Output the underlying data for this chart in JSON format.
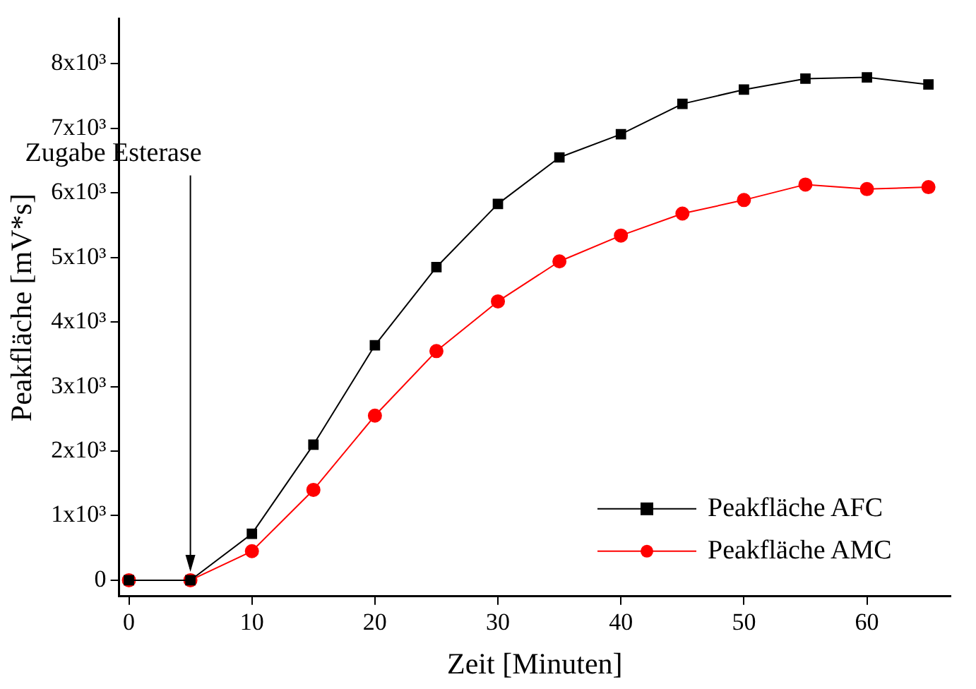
{
  "chart_data": {
    "type": "line",
    "xlabel": "Zeit [Minuten]",
    "ylabel": "Peakfläche [mV*s]",
    "x": [
      0,
      5,
      10,
      15,
      20,
      25,
      30,
      35,
      40,
      45,
      50,
      55,
      60,
      65
    ],
    "series": [
      {
        "name": "Peakfläche AFC",
        "color": "#000000",
        "marker": "square",
        "values": [
          0,
          0,
          720,
          2100,
          3640,
          4850,
          5830,
          6550,
          6910,
          7380,
          7600,
          7770,
          7790,
          7680
        ]
      },
      {
        "name": "Peakfläche AMC",
        "color": "#ff0000",
        "marker": "circle",
        "values": [
          0,
          0,
          450,
          1400,
          2550,
          3550,
          4320,
          4940,
          5340,
          5680,
          5890,
          6130,
          6060,
          6090
        ]
      }
    ],
    "xlim": [
      -0.8,
      66.8
    ],
    "xticks": [
      0,
      10,
      20,
      30,
      40,
      50,
      60
    ],
    "ylim": [
      -250,
      8700
    ],
    "yticks": [
      0,
      {
        "value": 1000,
        "label": "1x10³"
      },
      {
        "value": 2000,
        "label": "2x10³"
      },
      {
        "value": 3000,
        "label": "3x10³"
      },
      {
        "value": 4000,
        "label": "4x10³"
      },
      {
        "value": 5000,
        "label": "5x10³"
      },
      {
        "value": 6000,
        "label": "6x10³"
      },
      {
        "value": 7000,
        "label": "7x10³"
      },
      {
        "value": 8000,
        "label": "8x10³"
      }
    ],
    "annotations": [
      {
        "text": "Zugabe Esterase",
        "x": 5,
        "y": 0
      }
    ],
    "legend": "bottom right",
    "grid": false,
    "line_style": "solid"
  }
}
